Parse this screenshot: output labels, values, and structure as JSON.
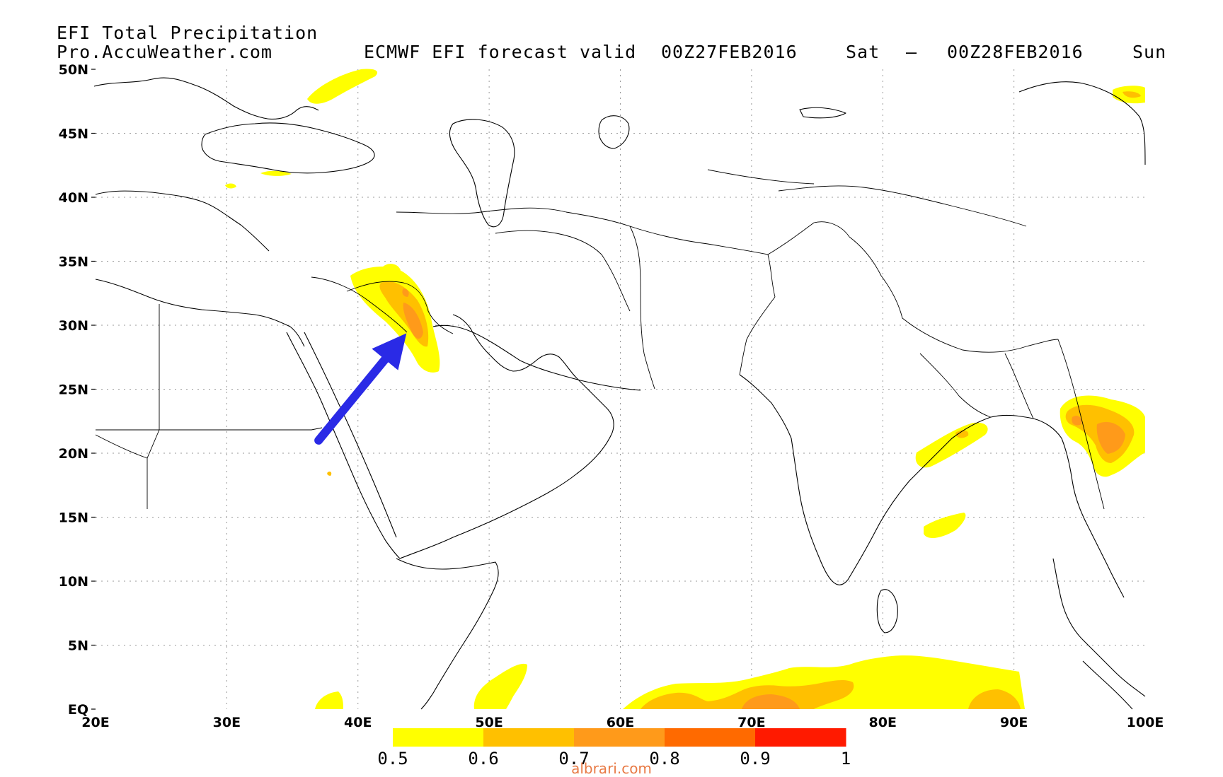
{
  "header": {
    "product": "EFI Total Precipitation",
    "source": "Pro.AccuWeather.com",
    "valid_label": "ECMWF EFI forecast valid",
    "start_time": "00Z27FEB2016",
    "start_day": "Sat",
    "separator": "–",
    "end_time": "00Z28FEB2016",
    "end_day": "Sun"
  },
  "map": {
    "lon_range": [
      20,
      100
    ],
    "lat_range": [
      0,
      50
    ],
    "lat_ticks": [
      "50N",
      "45N",
      "40N",
      "35N",
      "30N",
      "25N",
      "20N",
      "15N",
      "10N",
      "5N",
      "EQ"
    ],
    "lon_ticks": [
      "20E",
      "30E",
      "40E",
      "50E",
      "60E",
      "70E",
      "80E",
      "90E",
      "100E"
    ],
    "grid": "dotted",
    "highlight_arrow": {
      "color": "#2a2ae6",
      "from": [
        37,
        21
      ],
      "to": [
        43,
        28.5
      ]
    }
  },
  "colorbar": {
    "labels": [
      "0.5",
      "0.6",
      "0.7",
      "0.8",
      "0.9",
      "1"
    ],
    "colors": [
      "#ffff00",
      "#ffc000",
      "#ff9a1a",
      "#ff6a00",
      "#ff1a00"
    ]
  },
  "credit": "albrari.com"
}
